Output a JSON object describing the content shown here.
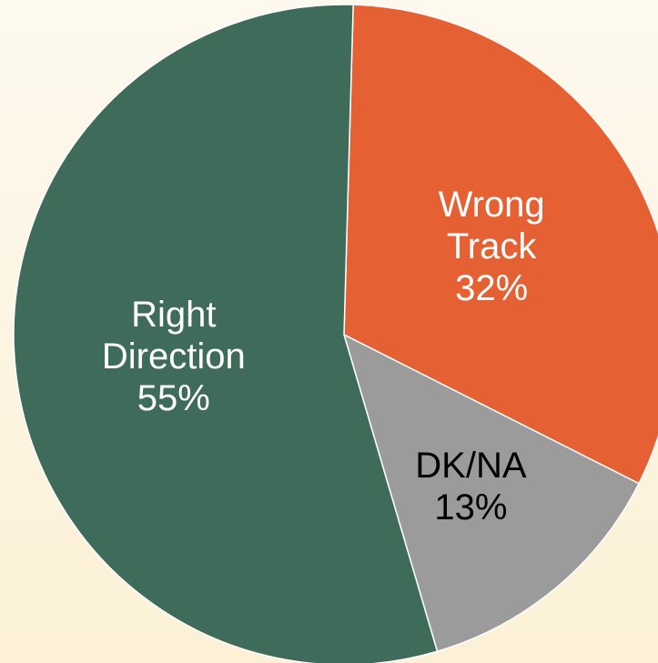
{
  "chart_data": {
    "type": "pie",
    "categories": [
      "Wrong Track",
      "DK/NA",
      "Right Direction"
    ],
    "values": [
      32,
      13,
      55
    ],
    "value_labels": [
      "32%",
      "13%",
      "55%"
    ],
    "colors": [
      "#e56032",
      "#9b9b9b",
      "#3e6b5a"
    ],
    "label_colors": [
      "#ffffff",
      "#000000",
      "#ffffff"
    ]
  }
}
